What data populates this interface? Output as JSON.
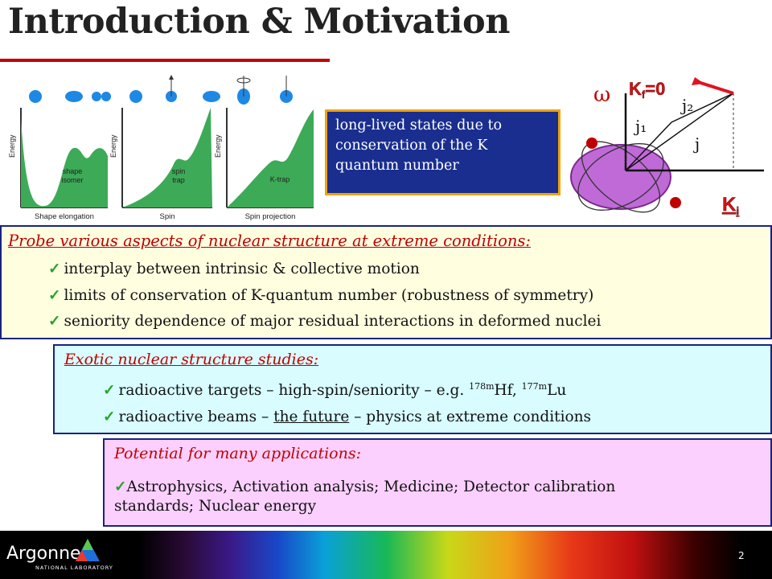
{
  "slide": {
    "title": "Introduction & Motivation",
    "page_number": "2"
  },
  "figure_left": {
    "panels": [
      {
        "y_label": "Energy",
        "region_label_line1": "shape",
        "region_label_line2": "isomer",
        "x_label": "Shape elongation"
      },
      {
        "y_label": "Energy",
        "region_label_line1": "spin",
        "region_label_line2": "trap",
        "x_label": "Spin"
      },
      {
        "y_label": "Energy",
        "region_label_line1": "K-trap",
        "region_label_line2": "",
        "x_label": "Spin projection"
      }
    ],
    "fill_color": "#3daa57"
  },
  "k_box": {
    "text": "long-lived states due to  conservation of the K quantum number"
  },
  "figure_right": {
    "omega": "ω",
    "kf": "K",
    "kf_sub": "f",
    "kf_value": "=0",
    "j2": "j₂",
    "j1": "j₁",
    "j": "j",
    "ki": "K",
    "ki_sub": "i"
  },
  "probe": {
    "heading": "Probe various aspects of nuclear structure at extreme conditions:",
    "items": [
      "interplay between intrinsic & collective motion",
      "limits of conservation of K-quantum number (robustness of symmetry)",
      "seniority dependence of major residual interactions in deformed nuclei"
    ]
  },
  "exotic": {
    "heading": "Exotic nuclear structure studies:",
    "item1_pre": "radioactive targets – high-spin/seniority – e.g. ",
    "item1_sup1": "178m",
    "item1_el1": "Hf, ",
    "item1_sup2": "177m",
    "item1_el2": "Lu",
    "item2_pre": "radioactive beams – ",
    "item2_ul": "the future",
    "item2_post": " – physics at extreme conditions"
  },
  "apps": {
    "heading": "Potential for many applications:",
    "line1": "Astrophysics, Activation analysis; Medicine; Detector calibration",
    "line2": "standards; Nuclear energy"
  },
  "footer": {
    "logo": "Argonne",
    "logo_sub": "NATIONAL LABORATORY"
  }
}
